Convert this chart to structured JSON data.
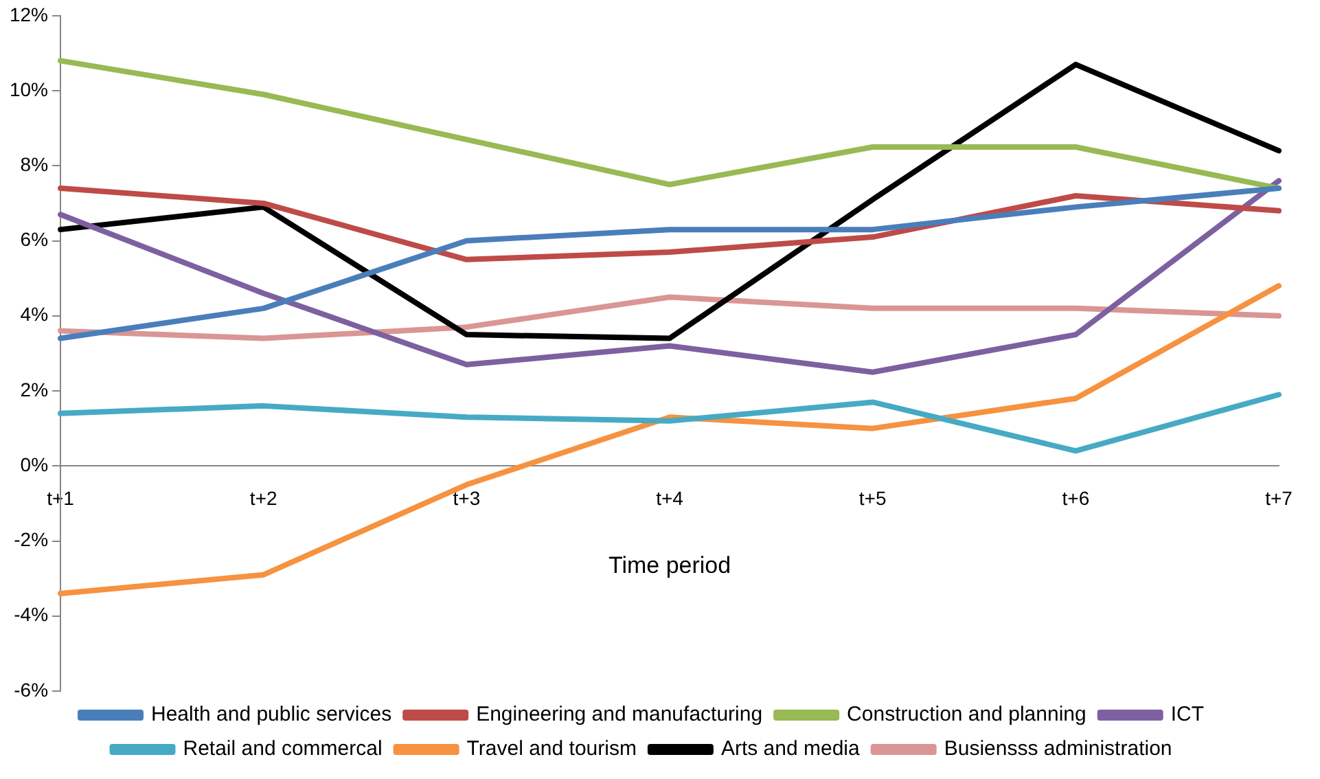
{
  "chart_data": {
    "type": "line",
    "xlabel": "Time period",
    "categories": [
      "t+1",
      "t+2",
      "t+3",
      "t+4",
      "t+5",
      "t+6",
      "t+7"
    ],
    "series": [
      {
        "name": "Health and public services",
        "color": "#4a7ebb",
        "values": [
          3.4,
          4.2,
          6.0,
          6.3,
          6.3,
          6.9,
          7.4
        ]
      },
      {
        "name": "Engineering and manufacturing",
        "color": "#be4b48",
        "values": [
          7.4,
          7.0,
          5.5,
          5.7,
          6.1,
          7.2,
          6.8
        ]
      },
      {
        "name": "Construction and planning",
        "color": "#98b954",
        "values": [
          10.8,
          9.9,
          8.7,
          7.5,
          8.5,
          8.5,
          7.4
        ]
      },
      {
        "name": "ICT",
        "color": "#7d60a0",
        "values": [
          6.7,
          4.6,
          2.7,
          3.2,
          2.5,
          3.5,
          7.6
        ]
      },
      {
        "name": "Retail and commercal",
        "color": "#46aac5",
        "values": [
          1.4,
          1.6,
          1.3,
          1.2,
          1.7,
          0.4,
          1.9
        ]
      },
      {
        "name": "Travel and tourism",
        "color": "#f69240",
        "values": [
          -3.4,
          -2.9,
          -0.5,
          1.3,
          1.0,
          1.8,
          4.8
        ]
      },
      {
        "name": "Arts and media",
        "color": "#000000",
        "values": [
          6.3,
          6.9,
          3.5,
          3.4,
          7.1,
          10.7,
          8.4
        ]
      },
      {
        "name": "Busiensss administration",
        "color": "#d99694",
        "values": [
          3.6,
          3.4,
          3.7,
          4.5,
          4.2,
          4.2,
          4.0
        ]
      }
    ],
    "ylim": [
      -6,
      12
    ],
    "yticks": [
      {
        "value": -6,
        "label": "-6%"
      },
      {
        "value": -4,
        "label": "-4%"
      },
      {
        "value": -2,
        "label": "-2%"
      },
      {
        "value": 0,
        "label": "0%"
      },
      {
        "value": 2,
        "label": "2%"
      },
      {
        "value": 4,
        "label": "4%"
      },
      {
        "value": 6,
        "label": "6%"
      },
      {
        "value": 8,
        "label": "8%"
      },
      {
        "value": 10,
        "label": "10%"
      },
      {
        "value": 12,
        "label": "12%"
      }
    ],
    "grid": false,
    "legend": "bottom",
    "marker": "none",
    "line_style": "solid"
  }
}
